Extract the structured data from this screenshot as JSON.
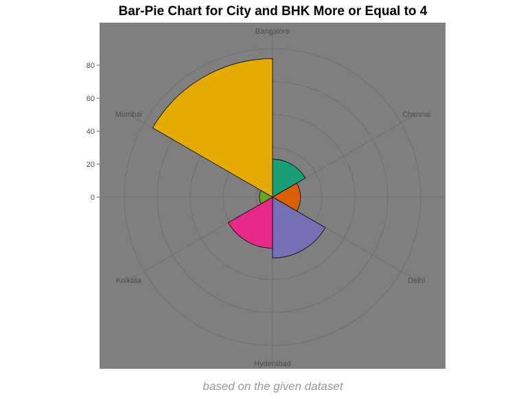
{
  "chart_data": {
    "type": "pie",
    "title": "Bar-Pie Chart for City and BHK More or Equal to 4",
    "caption": "based on the given dataset",
    "categories": [
      "Bangalore",
      "Chennai",
      "Delhi",
      "Hyderabad",
      "Kolkata",
      "Mumbai"
    ],
    "values": [
      23,
      17,
      37,
      31,
      8,
      84
    ],
    "colors": [
      "#1B9E77",
      "#D95F02",
      "#7570B3",
      "#E7298A",
      "#66A61E",
      "#E6AB02"
    ],
    "y_ticks": [
      0,
      20,
      40,
      60,
      80
    ],
    "y_max": 100,
    "panel_color": "#7f7f7f",
    "grid": true,
    "legend": "none"
  }
}
